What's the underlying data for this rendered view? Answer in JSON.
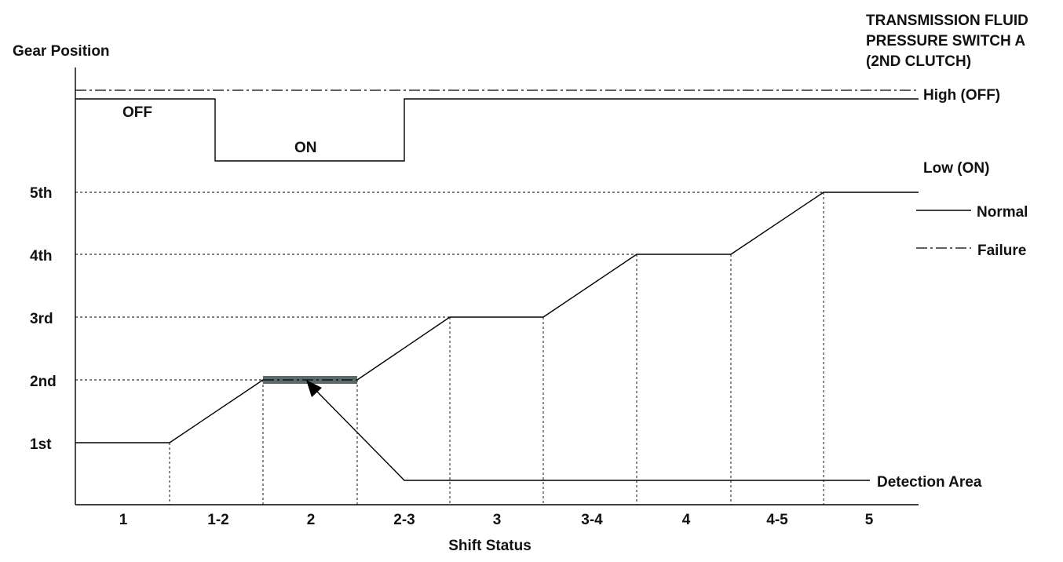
{
  "switch_title": [
    "TRANSMISSION FLUID",
    "PRESSURE SWITCH A",
    "(2ND CLUTCH)"
  ],
  "y_axis_label": "Gear Position",
  "x_axis_label": "Shift Status",
  "levels": {
    "high": "High (OFF)",
    "low": "Low (ON)"
  },
  "signal_states": {
    "off": "OFF",
    "on": "ON"
  },
  "legend": {
    "normal": "Normal",
    "failure": "Failure"
  },
  "detection_label": "Detection Area",
  "gear_labels": [
    "1st",
    "2nd",
    "3rd",
    "4th",
    "5th"
  ],
  "shift_statuses": [
    "1",
    "1-2",
    "2",
    "2-3",
    "3",
    "3-4",
    "4",
    "4-5",
    "5"
  ],
  "switch_signal": {
    "normal": [
      "OFF",
      "OFF",
      "ON",
      "OFF",
      "OFF",
      "OFF",
      "OFF",
      "OFF",
      "OFF"
    ],
    "failure": "OFF"
  },
  "gear_profile": [
    1,
    "1→2",
    2,
    "2→3",
    3,
    "3→4",
    4,
    "4→5",
    5
  ],
  "detection_status": "2",
  "colors": {
    "line": "#000000",
    "detection_bar": "#5b6b6b",
    "text": "#111111"
  }
}
